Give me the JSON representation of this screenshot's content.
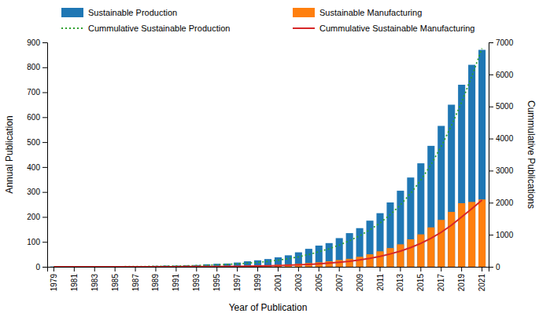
{
  "chart_data": {
    "type": "bar",
    "x_label": "Year of Publication",
    "y_label": "Annual Publication",
    "y2_label": "Cummulative Publications",
    "categories": [
      "1979",
      null,
      "1981",
      null,
      "1983",
      null,
      "1985",
      null,
      "1987",
      null,
      "1989",
      null,
      "1991",
      null,
      "1993",
      null,
      "1995",
      null,
      "1997",
      null,
      "1999",
      null,
      "2001",
      null,
      "2003",
      null,
      "2005",
      null,
      "2007",
      null,
      "2009",
      null,
      "2011",
      null,
      "2013",
      null,
      "2015",
      null,
      "2017",
      null,
      "2019",
      null,
      "2021"
    ],
    "ylim": [
      0,
      900
    ],
    "yticks": [
      0,
      100,
      200,
      300,
      400,
      500,
      600,
      700,
      800,
      900
    ],
    "y2lim": [
      0,
      7000
    ],
    "y2ticks": [
      0,
      1000,
      2000,
      3000,
      4000,
      5000,
      6000,
      7000
    ],
    "stacked": false,
    "grid": false,
    "legend": "top",
    "series": [
      {
        "name": "Sustainable Production",
        "type": "bar",
        "values": [
          1,
          0,
          0,
          1,
          0,
          1,
          1,
          2,
          2,
          3,
          4,
          5,
          5,
          6,
          7,
          10,
          12,
          13,
          17,
          22,
          26,
          31,
          38,
          46,
          58,
          72,
          85,
          95,
          115,
          135,
          155,
          185,
          215,
          258,
          305,
          358,
          415,
          485,
          565,
          650,
          730,
          810,
          870
        ]
      },
      {
        "name": "Sustainable Manufacturing",
        "type": "bar",
        "values": [
          0,
          0,
          0,
          0,
          0,
          0,
          0,
          0,
          0,
          0,
          1,
          1,
          1,
          1,
          1,
          2,
          2,
          3,
          3,
          4,
          5,
          6,
          8,
          10,
          12,
          15,
          18,
          22,
          27,
          32,
          40,
          50,
          62,
          75,
          90,
          110,
          130,
          158,
          188,
          220,
          255,
          260,
          270
        ]
      },
      {
        "name": "Cummulative Sustainable Production",
        "type": "line",
        "line_style": "dotted",
        "axis": "y2",
        "values": [
          1,
          1,
          1,
          2,
          2,
          3,
          4,
          6,
          8,
          11,
          15,
          20,
          25,
          31,
          38,
          48,
          60,
          73,
          90,
          112,
          138,
          169,
          207,
          253,
          311,
          383,
          468,
          563,
          678,
          813,
          968,
          1153,
          1368,
          1626,
          1931,
          2289,
          2704,
          3189,
          3754,
          4404,
          5134,
          5944,
          6814
        ]
      },
      {
        "name": "Cummulative Sustainable Manufacturing",
        "type": "line",
        "line_style": "solid",
        "axis": "y2",
        "values": [
          0,
          0,
          0,
          0,
          0,
          0,
          0,
          0,
          0,
          0,
          1,
          2,
          3,
          4,
          5,
          7,
          9,
          12,
          15,
          19,
          24,
          30,
          38,
          48,
          60,
          75,
          93,
          115,
          142,
          174,
          214,
          264,
          326,
          401,
          491,
          601,
          731,
          889,
          1077,
          1297,
          1552,
          1812,
          2082
        ]
      }
    ]
  }
}
